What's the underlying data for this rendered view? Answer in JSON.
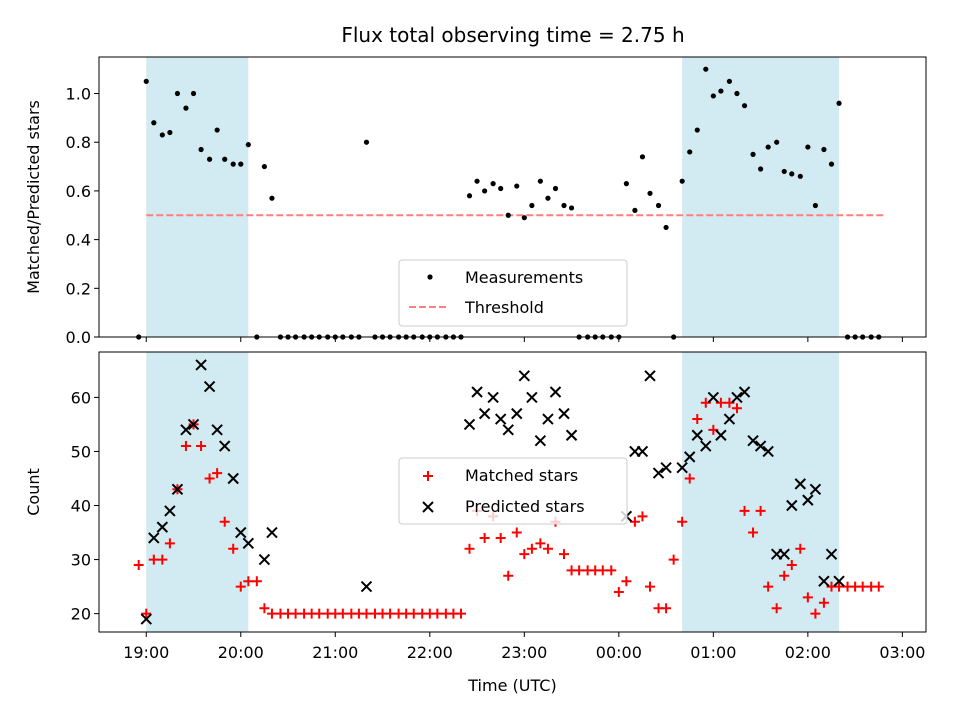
{
  "title": "Flux total observing time = 2.75 h",
  "colors": {
    "measurement": "#000000",
    "threshold": "#ff7f7f",
    "matched": "#ff0000",
    "predicted": "#000000",
    "shade": "#add8e6"
  },
  "chart_data": [
    {
      "type": "scatter",
      "ylabel": "Matched/Predicted stars",
      "xlim": [
        -0.5,
        8.25
      ],
      "ylim": [
        0,
        1.15
      ],
      "yticks": [
        0.0,
        0.2,
        0.4,
        0.6,
        0.8,
        1.0
      ],
      "ytick_labels": [
        "0.0",
        "0.2",
        "0.4",
        "0.6",
        "0.8",
        "1.0"
      ],
      "shaded_intervals": [
        [
          0.0,
          1.08
        ],
        [
          5.67,
          7.33
        ]
      ],
      "legend": {
        "position": "lower center",
        "entries": [
          "Measurements",
          "Threshold"
        ]
      },
      "threshold": {
        "name": "Threshold",
        "value": 0.5,
        "x_range": [
          0.0,
          7.83
        ]
      },
      "series": [
        {
          "name": "Measurements",
          "marker": "dot",
          "x": [
            -0.08,
            0.0,
            0.08,
            0.17,
            0.25,
            0.33,
            0.42,
            0.5,
            0.58,
            0.67,
            0.75,
            0.83,
            0.92,
            1.0,
            1.08,
            1.17,
            1.25,
            1.33,
            1.42,
            1.5,
            1.58,
            1.67,
            1.75,
            1.83,
            1.92,
            2.0,
            2.08,
            2.17,
            2.25,
            2.33,
            2.42,
            2.5,
            2.58,
            2.67,
            2.75,
            2.83,
            2.92,
            3.0,
            3.08,
            3.17,
            3.25,
            3.33,
            3.42,
            3.5,
            3.58,
            3.67,
            3.75,
            3.83,
            3.92,
            4.0,
            4.08,
            4.17,
            4.25,
            4.33,
            4.42,
            4.5,
            4.58,
            4.67,
            4.75,
            4.83,
            4.92,
            5.0,
            5.08,
            5.17,
            5.25,
            5.33,
            5.42,
            5.5,
            5.58,
            5.67,
            5.75,
            5.83,
            5.92,
            6.0,
            6.08,
            6.17,
            6.25,
            6.33,
            6.42,
            6.5,
            6.58,
            6.67,
            6.75,
            6.83,
            6.92,
            7.0,
            7.08,
            7.17,
            7.25,
            7.33,
            7.42,
            7.5,
            7.58,
            7.67,
            7.75
          ],
          "y": [
            0.0,
            1.05,
            0.88,
            0.83,
            0.84,
            1.0,
            0.94,
            1.0,
            0.77,
            0.73,
            0.85,
            0.73,
            0.71,
            0.71,
            0.79,
            0.0,
            0.7,
            0.57,
            0.0,
            0.0,
            0.0,
            0.0,
            0.0,
            0.0,
            0.0,
            0.0,
            0.0,
            0.0,
            0.0,
            0.8,
            0.0,
            0.0,
            0.0,
            0.0,
            0.0,
            0.0,
            0.0,
            0.0,
            0.0,
            0.0,
            0.0,
            0.0,
            0.58,
            0.64,
            0.6,
            0.63,
            0.61,
            0.5,
            0.62,
            0.49,
            0.54,
            0.64,
            0.57,
            0.61,
            0.54,
            0.53,
            0.0,
            0.0,
            0.0,
            0.0,
            0.0,
            0.0,
            0.63,
            0.52,
            0.74,
            0.59,
            0.54,
            0.45,
            0.0,
            0.64,
            0.76,
            0.85,
            1.1,
            0.99,
            1.01,
            1.05,
            1.0,
            0.95,
            0.75,
            0.69,
            0.78,
            0.8,
            0.68,
            0.67,
            0.66,
            0.78,
            0.54,
            0.77,
            0.71,
            0.96,
            0.0,
            0.0,
            0.0,
            0.0,
            0.0
          ]
        }
      ]
    },
    {
      "type": "scatter",
      "ylabel": "Count",
      "xlabel": "Time (UTC)",
      "xlim": [
        -0.5,
        8.25
      ],
      "ylim": [
        16.6,
        68.4
      ],
      "yticks": [
        20,
        30,
        40,
        50,
        60
      ],
      "ytick_labels": [
        "20",
        "30",
        "40",
        "50",
        "60"
      ],
      "xticks": [
        0,
        1,
        2,
        3,
        4,
        5,
        6,
        7,
        8
      ],
      "xtick_labels": [
        "19:00",
        "20:00",
        "21:00",
        "22:00",
        "23:00",
        "00:00",
        "01:00",
        "02:00",
        "03:00"
      ],
      "shaded_intervals": [
        [
          0.0,
          1.08
        ],
        [
          5.67,
          7.33
        ]
      ],
      "legend": {
        "position": "center",
        "entries": [
          "Matched stars",
          "Predicted stars"
        ]
      },
      "series": [
        {
          "name": "Matched stars",
          "marker": "plus",
          "x": [
            -0.08,
            0.0,
            0.08,
            0.17,
            0.25,
            0.33,
            0.42,
            0.5,
            0.58,
            0.67,
            0.75,
            0.83,
            0.92,
            1.0,
            1.08,
            1.17,
            1.25,
            1.33,
            1.42,
            1.5,
            1.58,
            1.67,
            1.75,
            1.83,
            1.92,
            2.0,
            2.08,
            2.17,
            2.25,
            2.33,
            2.42,
            2.5,
            2.58,
            2.67,
            2.75,
            2.83,
            2.92,
            3.0,
            3.08,
            3.17,
            3.25,
            3.33,
            3.42,
            3.5,
            3.58,
            3.67,
            3.75,
            3.83,
            3.92,
            4.0,
            4.08,
            4.17,
            4.25,
            4.33,
            4.42,
            4.5,
            4.58,
            4.67,
            4.75,
            4.83,
            4.92,
            5.0,
            5.08,
            5.17,
            5.25,
            5.33,
            5.42,
            5.5,
            5.58,
            5.67,
            5.75,
            5.83,
            5.92,
            6.0,
            6.08,
            6.17,
            6.25,
            6.33,
            6.42,
            6.5,
            6.58,
            6.67,
            6.75,
            6.83,
            6.92,
            7.0,
            7.08,
            7.17,
            7.25,
            7.33,
            7.42,
            7.5,
            7.58,
            7.67,
            7.75
          ],
          "y": [
            29,
            20,
            30,
            30,
            33,
            43,
            51,
            55,
            51,
            45,
            46,
            37,
            32,
            25,
            26,
            26,
            21,
            20,
            20,
            20,
            20,
            20,
            20,
            20,
            20,
            20,
            20,
            20,
            20,
            20,
            20,
            20,
            20,
            20,
            20,
            20,
            20,
            20,
            20,
            20,
            20,
            20,
            32,
            39,
            34,
            38,
            34,
            27,
            35,
            31,
            32,
            33,
            32,
            37,
            31,
            28,
            28,
            28,
            28,
            28,
            28,
            24,
            26,
            37,
            38,
            25,
            21,
            21,
            30,
            37,
            45,
            56,
            59,
            54,
            59,
            59,
            58,
            39,
            35,
            39,
            25,
            21,
            27,
            29,
            32,
            23,
            20,
            22,
            25,
            25,
            25,
            25,
            25,
            25,
            25
          ]
        },
        {
          "name": "Predicted stars",
          "marker": "x",
          "x": [
            0.0,
            0.08,
            0.17,
            0.25,
            0.33,
            0.42,
            0.5,
            0.58,
            0.67,
            0.75,
            0.83,
            0.92,
            1.0,
            1.08,
            1.25,
            1.33,
            2.33,
            3.42,
            3.5,
            3.58,
            3.67,
            3.75,
            3.83,
            3.92,
            4.0,
            4.08,
            4.17,
            4.25,
            4.33,
            4.42,
            4.5,
            5.08,
            5.17,
            5.25,
            5.33,
            5.42,
            5.5,
            5.67,
            5.75,
            5.83,
            5.92,
            6.0,
            6.08,
            6.17,
            6.25,
            6.33,
            6.42,
            6.5,
            6.58,
            6.67,
            6.75,
            6.83,
            6.92,
            7.0,
            7.08,
            7.17,
            7.25,
            7.33
          ],
          "y": [
            19,
            34,
            36,
            39,
            43,
            54,
            55,
            66,
            62,
            54,
            51,
            45,
            35,
            33,
            30,
            35,
            25,
            55,
            61,
            57,
            60,
            56,
            54,
            57,
            64,
            60,
            52,
            56,
            61,
            57,
            53,
            38,
            50,
            50,
            64,
            46,
            47,
            47,
            49,
            53,
            51,
            60,
            53,
            56,
            60,
            61,
            52,
            51,
            50,
            31,
            31,
            40,
            44,
            41,
            43,
            26,
            31,
            26
          ]
        }
      ]
    }
  ]
}
